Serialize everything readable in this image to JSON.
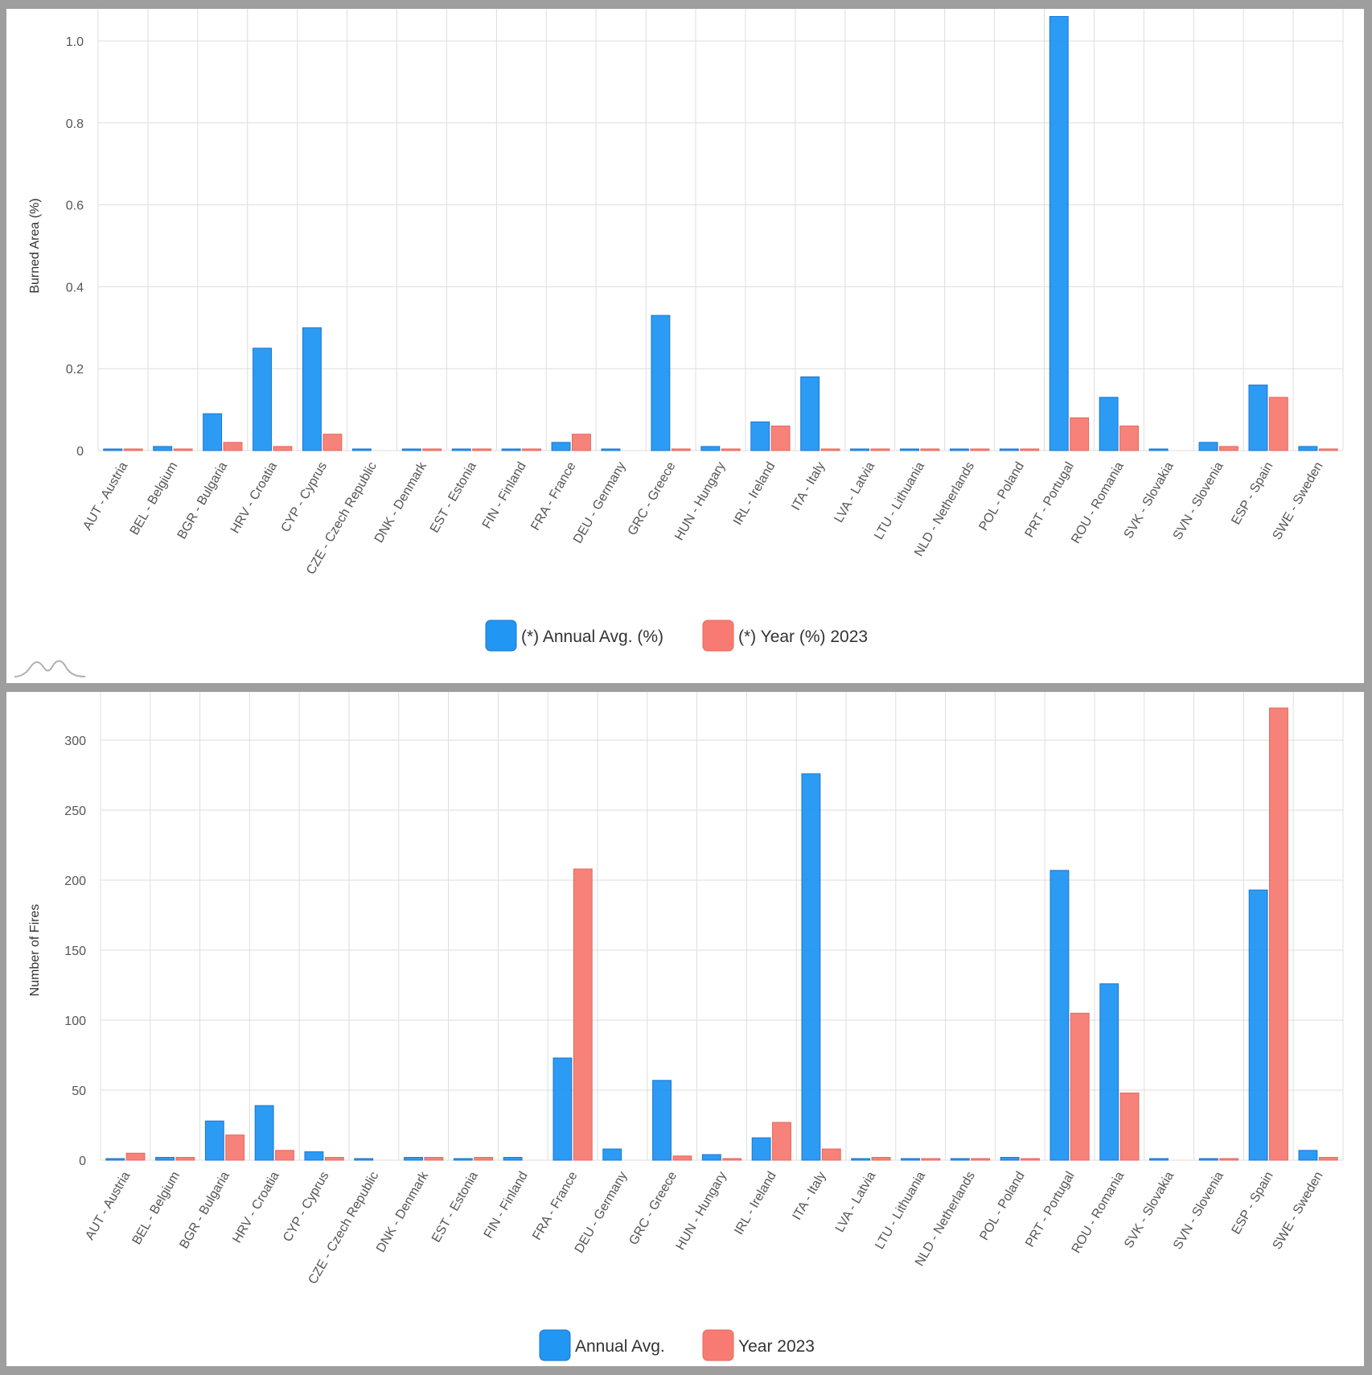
{
  "chart_data": [
    {
      "type": "bar",
      "ylabel": "Burned Area (%)",
      "ylim": [
        0,
        1.0
      ],
      "yticks": [
        "0",
        "0.2",
        "0.4",
        "0.6",
        "0.8",
        "1.0"
      ],
      "grid": true,
      "legend_position": "bottom-center",
      "categories": [
        "AUT - Austria",
        "BEL - Belgium",
        "BGR - Bulgaria",
        "HRV - Croatia",
        "CYP - Cyprus",
        "CZE - Czech Republic",
        "DNK - Denmark",
        "EST - Estonia",
        "FIN - Finland",
        "FRA - France",
        "DEU - Germany",
        "GRC - Greece",
        "HUN - Hungary",
        "IRL - Ireland",
        "ITA - Italy",
        "LVA - Latvia",
        "LTU - Lithuania",
        "NLD - Netherlands",
        "POL - Poland",
        "PRT - Portugal",
        "ROU - Romania",
        "SVK - Slovakia",
        "SVN - Slovenia",
        "ESP - Spain",
        "SWE - Sweden"
      ],
      "series": [
        {
          "name": "(*) Annual Avg. (%)",
          "color": "#2196f3",
          "values": [
            0.0,
            0.01,
            0.09,
            0.25,
            0.3,
            0.0,
            0.0,
            0.0,
            0.0,
            0.02,
            0.0,
            0.33,
            0.01,
            0.07,
            0.18,
            0.0,
            0.0,
            0.0,
            0.0,
            1.06,
            0.13,
            0.0,
            0.02,
            0.16,
            0.01
          ]
        },
        {
          "name": "(*) Year (%) 2023",
          "color": "#f77b72",
          "values": [
            0.0,
            0.0,
            0.02,
            0.01,
            0.04,
            null,
            0.0,
            0.0,
            0.0,
            0.04,
            null,
            0.0,
            0.0,
            0.06,
            0.0,
            0.0,
            0.0,
            0.0,
            0.0,
            0.08,
            0.06,
            null,
            0.01,
            0.13,
            0.0
          ]
        }
      ]
    },
    {
      "type": "bar",
      "ylabel": "Number of Fires",
      "ylim": [
        0,
        300
      ],
      "yticks": [
        "0",
        "50",
        "100",
        "150",
        "200",
        "250",
        "300"
      ],
      "grid": true,
      "legend_position": "bottom-center",
      "categories": [
        "AUT - Austria",
        "BEL - Belgium",
        "BGR - Bulgaria",
        "HRV - Croatia",
        "CYP - Cyprus",
        "CZE - Czech Republic",
        "DNK - Denmark",
        "EST - Estonia",
        "FIN - Finland",
        "FRA - France",
        "DEU - Germany",
        "GRC - Greece",
        "HUN - Hungary",
        "IRL - Ireland",
        "ITA - Italy",
        "LVA - Latvia",
        "LTU - Lithuania",
        "NLD - Netherlands",
        "POL - Poland",
        "PRT - Portugal",
        "ROU - Romania",
        "SVK - Slovakia",
        "SVN - Slovenia",
        "ESP - Spain",
        "SWE - Sweden"
      ],
      "series": [
        {
          "name": "Annual Avg.",
          "color": "#2196f3",
          "values": [
            1,
            2,
            28,
            39,
            6,
            0.5,
            2,
            1,
            2,
            73,
            8,
            57,
            4,
            16,
            276,
            1,
            0.5,
            1,
            2,
            207,
            126,
            1,
            1,
            193,
            7
          ]
        },
        {
          "name": "Year 2023",
          "color": "#f77b72",
          "values": [
            5,
            2,
            18,
            7,
            2,
            null,
            2,
            2,
            null,
            208,
            null,
            3,
            1,
            27,
            8,
            2,
            1,
            1,
            1,
            105,
            48,
            null,
            1,
            323,
            2
          ]
        }
      ]
    }
  ]
}
